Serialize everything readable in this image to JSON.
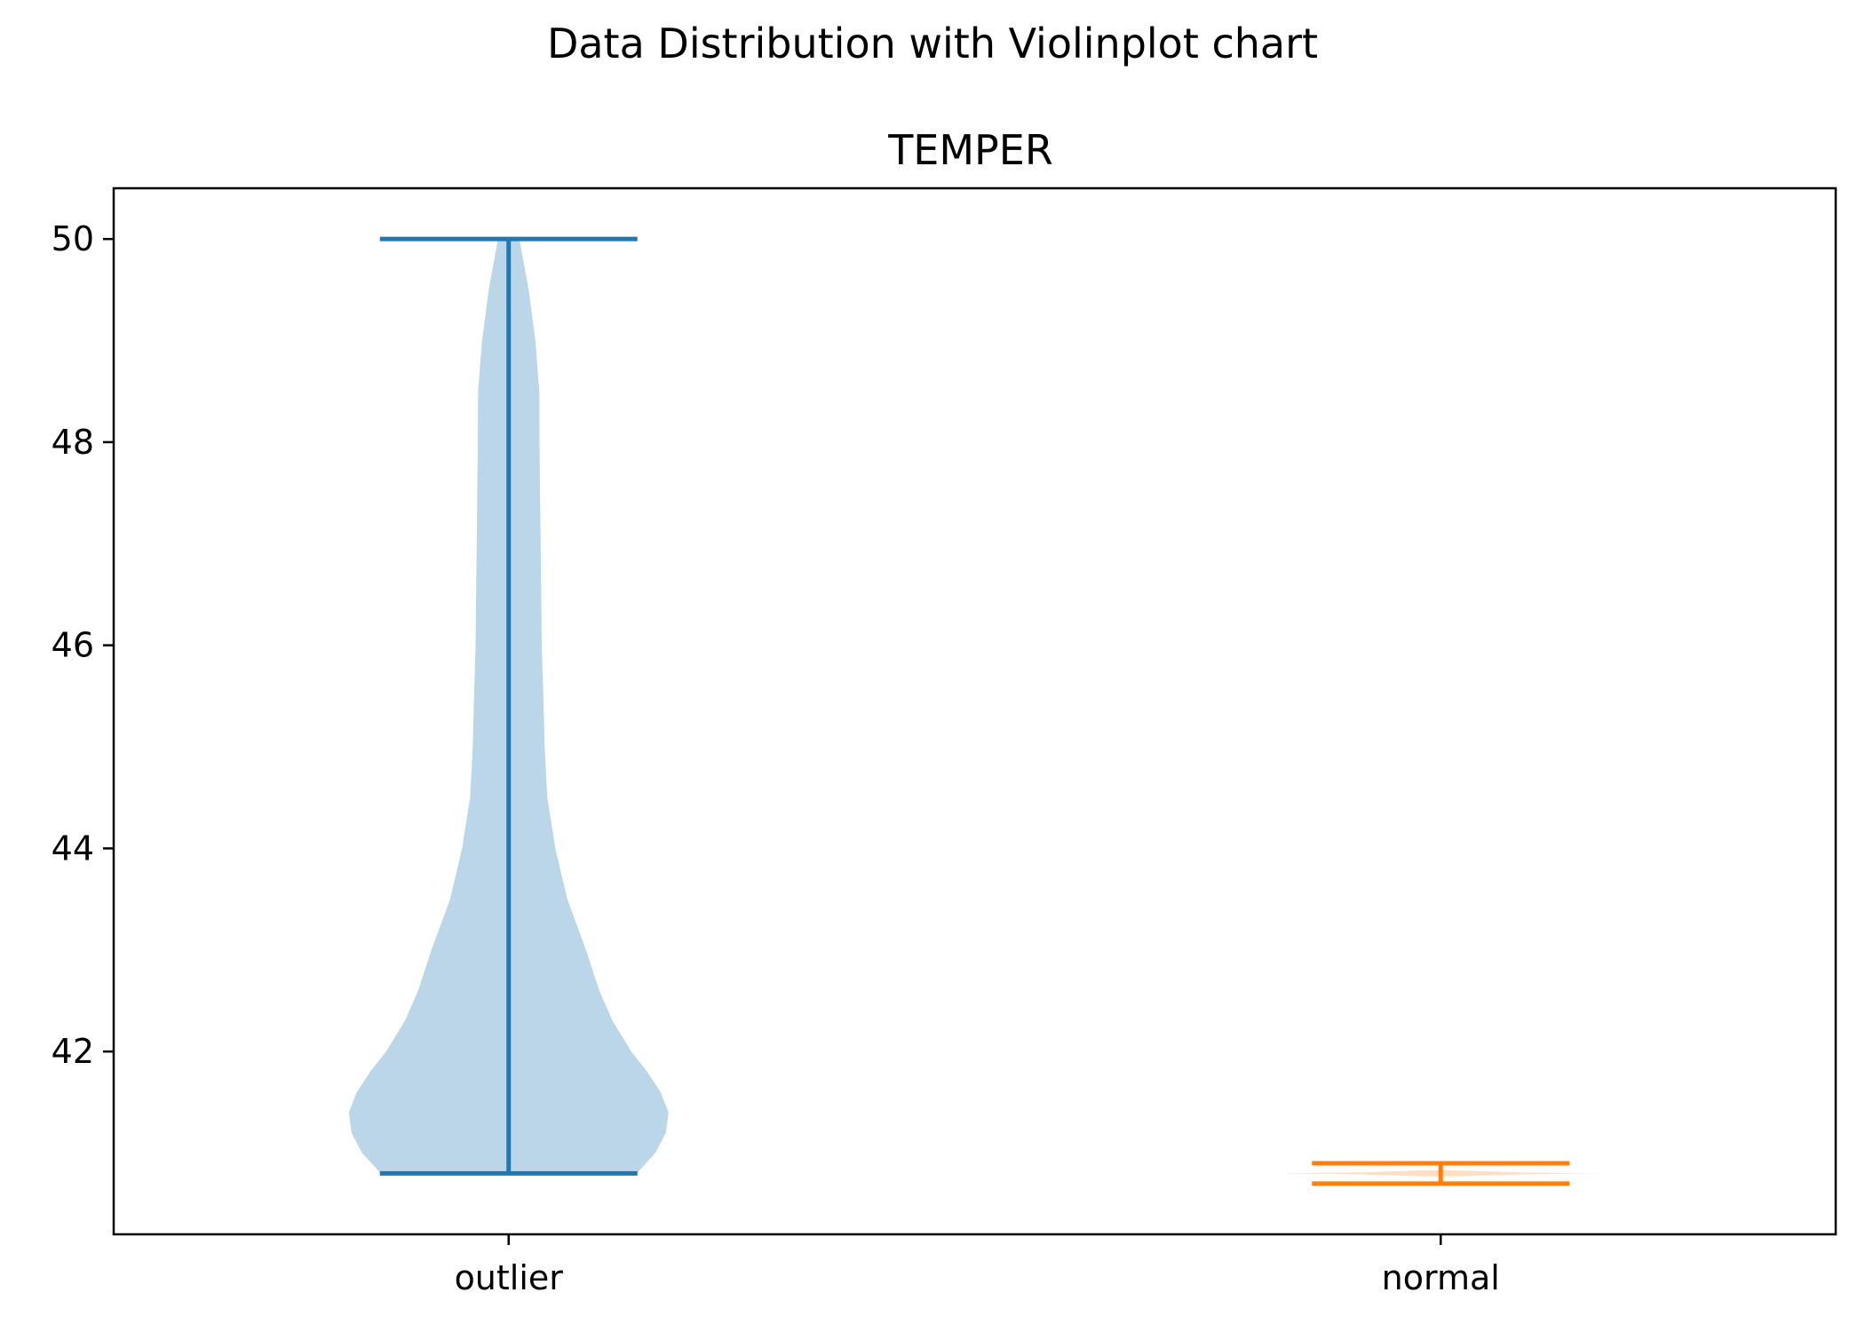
{
  "chart_data": {
    "type": "violin",
    "suptitle": "Data Distribution with Violinplot chart",
    "title": "TEMPER",
    "xlabel": "",
    "ylabel": "",
    "categories": [
      "outlier",
      "normal"
    ],
    "ylim": [
      40.2,
      50.5
    ],
    "yticks": [
      42,
      44,
      46,
      48,
      50
    ],
    "grid": false,
    "series": [
      {
        "category": "outlier",
        "color": "#1f77b4",
        "min": 40.8,
        "max": 50.0,
        "density_profile": [
          [
            40.8,
            0.48
          ],
          [
            41.0,
            0.55
          ],
          [
            41.2,
            0.59
          ],
          [
            41.4,
            0.6
          ],
          [
            41.6,
            0.57
          ],
          [
            41.8,
            0.52
          ],
          [
            42.0,
            0.46
          ],
          [
            42.3,
            0.39
          ],
          [
            42.6,
            0.34
          ],
          [
            43.0,
            0.29
          ],
          [
            43.5,
            0.22
          ],
          [
            44.0,
            0.175
          ],
          [
            44.5,
            0.145
          ],
          [
            45.0,
            0.135
          ],
          [
            45.5,
            0.13
          ],
          [
            46.0,
            0.124
          ],
          [
            46.5,
            0.122
          ],
          [
            47.0,
            0.12
          ],
          [
            47.5,
            0.118
          ],
          [
            48.0,
            0.116
          ],
          [
            48.5,
            0.115
          ],
          [
            49.0,
            0.1
          ],
          [
            49.5,
            0.075
          ],
          [
            50.0,
            0.04
          ]
        ]
      },
      {
        "category": "normal",
        "color": "#ff7f0e",
        "min": 40.7,
        "max": 40.9,
        "density_profile": [
          [
            40.77,
            0.05
          ],
          [
            40.79,
            0.3
          ],
          [
            40.8,
            0.6
          ],
          [
            40.81,
            0.3
          ],
          [
            40.83,
            0.05
          ]
        ]
      }
    ]
  }
}
